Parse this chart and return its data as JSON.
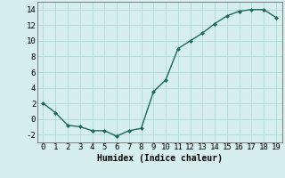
{
  "x": [
    0,
    1,
    2,
    3,
    4,
    5,
    6,
    7,
    8,
    9,
    10,
    11,
    12,
    13,
    14,
    15,
    16,
    17,
    18,
    19
  ],
  "y": [
    2.0,
    0.8,
    -0.8,
    -1.0,
    -1.5,
    -1.5,
    -2.2,
    -1.5,
    -1.2,
    3.5,
    5.0,
    9.0,
    10.0,
    11.0,
    12.2,
    13.2,
    13.8,
    14.0,
    14.0,
    13.0
  ],
  "line_color": "#1a6b5a",
  "marker_color": "#1a6b5a",
  "bg_color": "#d6eeee",
  "grid_color": "#b0d8d8",
  "xlabel": "Humidex (Indice chaleur)",
  "ylim": [
    -3,
    15
  ],
  "xlim": [
    -0.5,
    19.5
  ],
  "yticks": [
    -2,
    0,
    2,
    4,
    6,
    8,
    10,
    12,
    14
  ],
  "xticks": [
    0,
    1,
    2,
    3,
    4,
    5,
    6,
    7,
    8,
    9,
    10,
    11,
    12,
    13,
    14,
    15,
    16,
    17,
    18,
    19
  ],
  "xlabel_fontsize": 7,
  "tick_fontsize": 6.5
}
